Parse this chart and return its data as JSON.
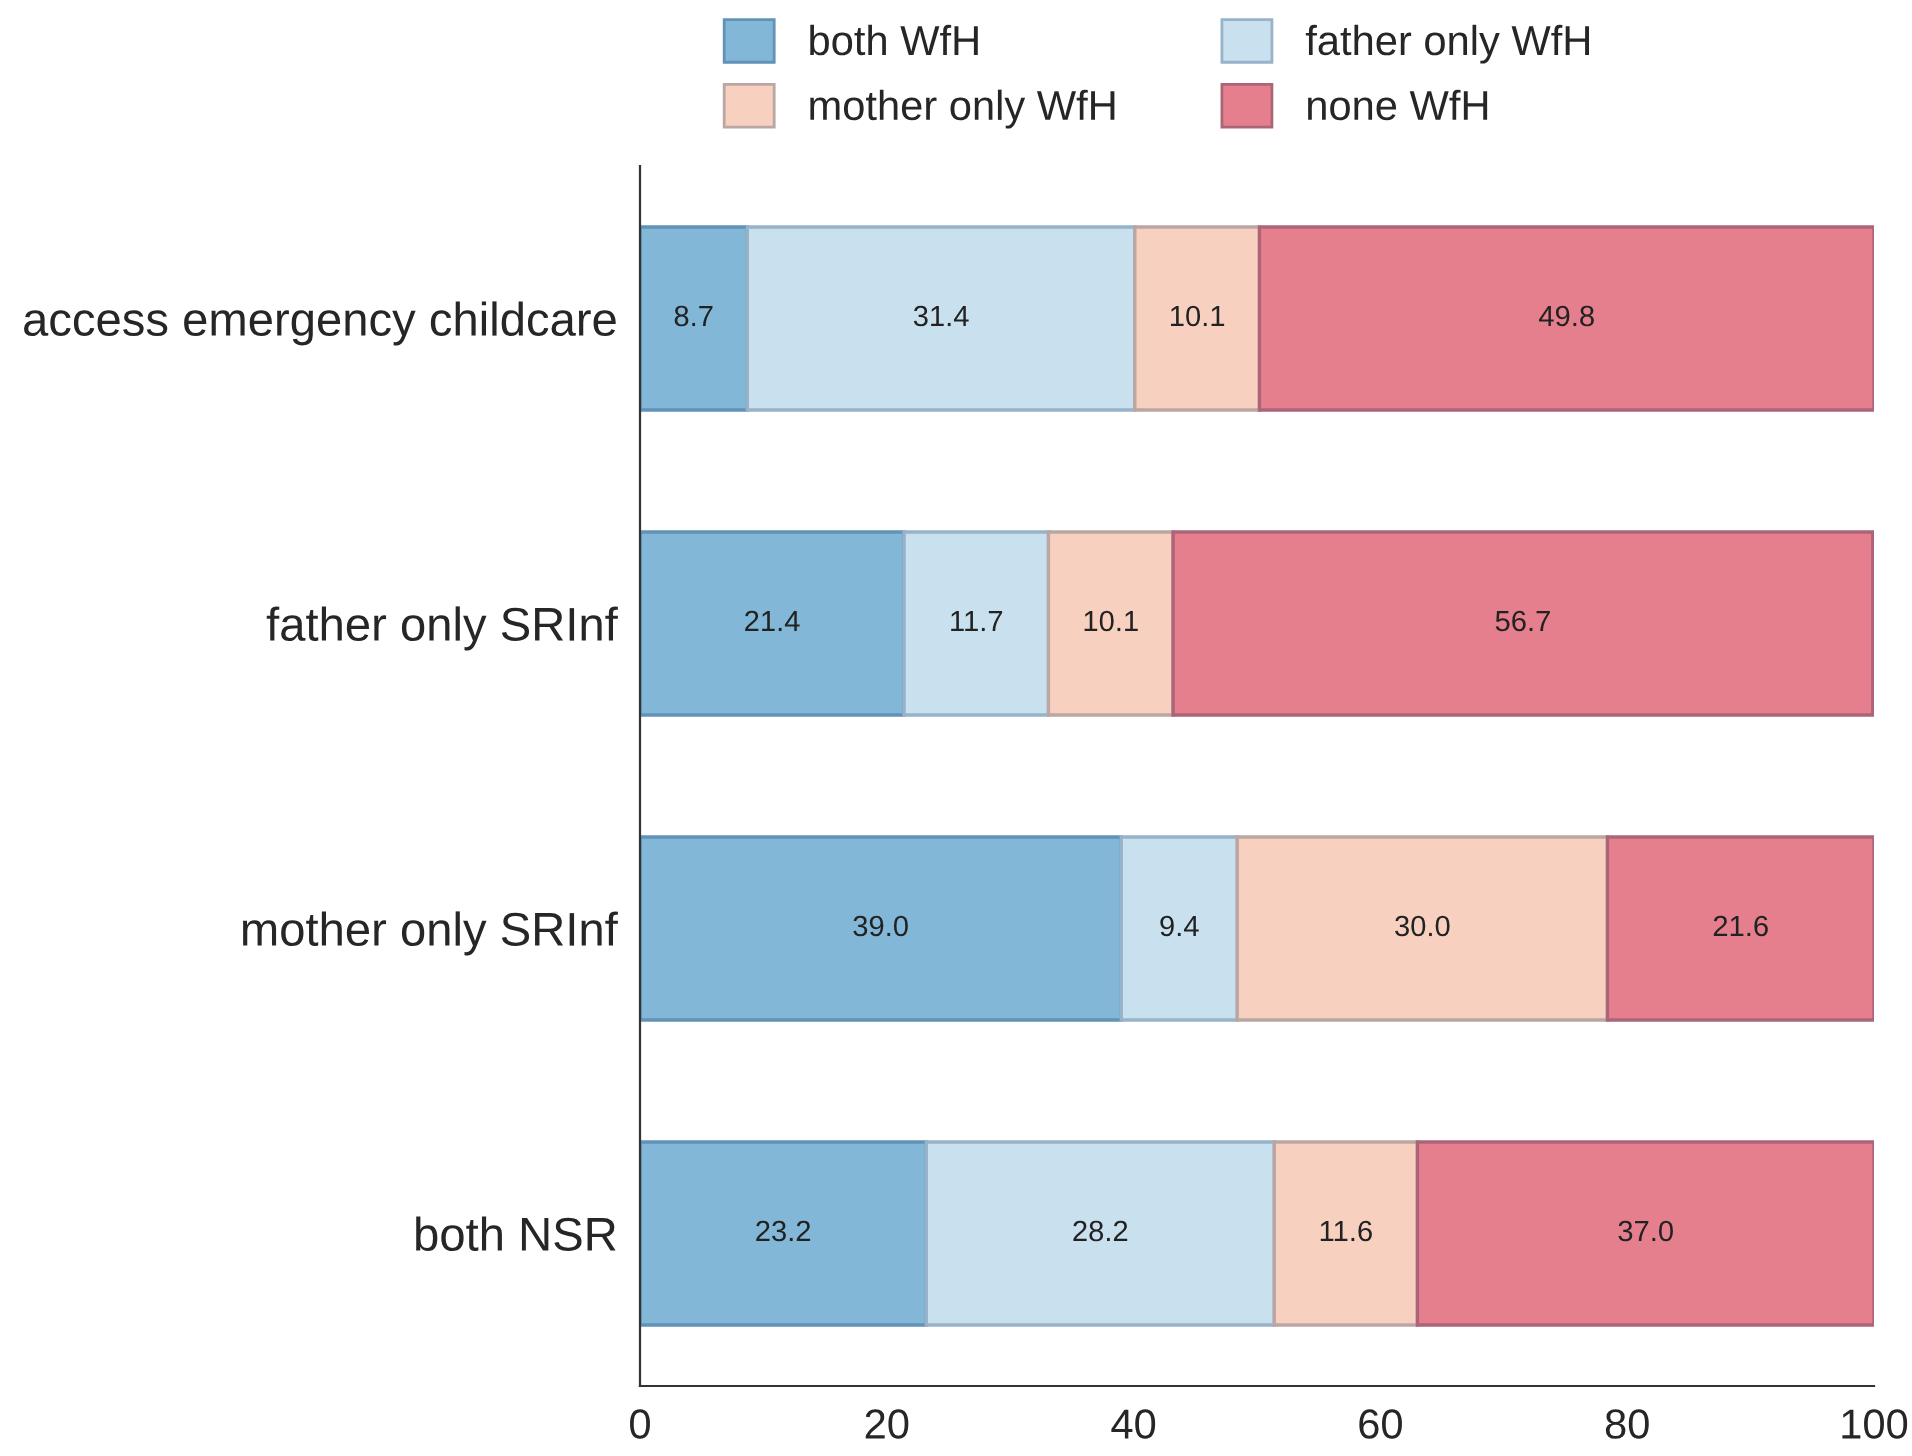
{
  "chart_data": {
    "type": "bar",
    "orientation": "horizontal",
    "stacked": true,
    "categories": [
      "access emergency childcare",
      "father only SRInf",
      "mother only SRInf",
      "both NSR"
    ],
    "series": [
      {
        "name": "both WfH",
        "color": "#82b7d7",
        "values": [
          8.7,
          21.4,
          39.0,
          23.2
        ],
        "value_labels": [
          "8.7",
          "21.4",
          "39.0",
          "23.2"
        ]
      },
      {
        "name": "father only WfH",
        "color": "#c9e0ee",
        "values": [
          31.4,
          11.7,
          9.4,
          28.2
        ],
        "value_labels": [
          "31.4",
          "11.7",
          "9.4",
          "28.2"
        ]
      },
      {
        "name": "mother only WfH",
        "color": "#f8d0c0",
        "values": [
          10.1,
          10.1,
          30.0,
          11.6
        ],
        "value_labels": [
          "10.1",
          "10.1",
          "30.0",
          "11.6"
        ]
      },
      {
        "name": "none WfH",
        "color": "#e57e8d",
        "values": [
          49.8,
          56.7,
          21.6,
          37.0
        ],
        "value_labels": [
          "49.8",
          "56.7",
          "21.6",
          "37.0"
        ]
      }
    ],
    "xlim": [
      0,
      100
    ],
    "xticks": [
      0,
      20,
      40,
      60,
      80,
      100
    ],
    "legend": "top",
    "grid": false
  }
}
